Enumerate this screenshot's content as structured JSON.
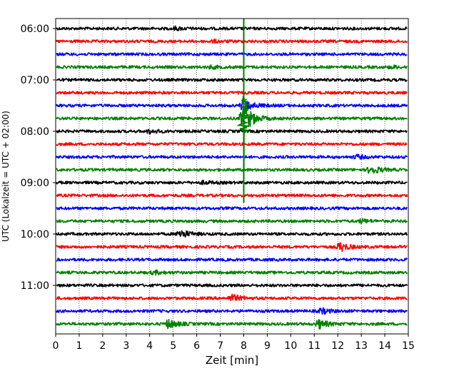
{
  "chart_data": {
    "type": "line",
    "title": "",
    "xlabel": "Zeit  [min]",
    "ylabel": "UTC (Lokalzeit = UTC + 02:00)",
    "xlim": [
      0,
      15
    ],
    "x_ticks": [
      0,
      1,
      2,
      3,
      4,
      5,
      6,
      7,
      8,
      9,
      10,
      11,
      12,
      13,
      14,
      15
    ],
    "y_tick_labels": [
      "06:00",
      "07:00",
      "08:00",
      "09:00",
      "10:00",
      "11:00"
    ],
    "trace_start_time": "06:00",
    "trace_interval_minutes": 15,
    "trace_count": 24,
    "grid": "vertical-dotted",
    "colors": [
      "#000000",
      "#ff0000",
      "#0000ff",
      "#008000"
    ],
    "events": [
      {
        "trace_start": "06:00",
        "minute": 5.1,
        "amplitude": 0.15
      },
      {
        "trace_start": "06:15",
        "minute": 6.7,
        "amplitude": 0.12
      },
      {
        "trace_start": "06:45",
        "minute": 6.6,
        "amplitude": 0.14
      },
      {
        "trace_start": "06:45",
        "minute": 14.3,
        "amplitude": 0.14
      },
      {
        "trace_start": "07:30",
        "minute": 8.0,
        "amplitude": 0.8
      },
      {
        "trace_start": "07:45",
        "minute": 8.0,
        "amplitude": 1.8
      },
      {
        "trace_start": "08:00",
        "minute": 4.0,
        "amplitude": 0.2
      },
      {
        "trace_start": "08:30",
        "minute": 12.8,
        "amplitude": 0.2
      },
      {
        "trace_start": "08:45",
        "minute": 13.4,
        "amplitude": 0.5
      },
      {
        "trace_start": "09:00",
        "minute": 6.3,
        "amplitude": 0.15
      },
      {
        "trace_start": "09:45",
        "minute": 13.0,
        "amplitude": 0.2
      },
      {
        "trace_start": "10:00",
        "minute": 5.3,
        "amplitude": 0.5
      },
      {
        "trace_start": "10:15",
        "minute": 12.1,
        "amplitude": 0.5
      },
      {
        "trace_start": "10:45",
        "minute": 4.2,
        "amplitude": 0.2
      },
      {
        "trace_start": "11:15",
        "minute": 7.5,
        "amplitude": 0.4
      },
      {
        "trace_start": "11:30",
        "minute": 11.3,
        "amplitude": 0.3
      },
      {
        "trace_start": "11:45",
        "minute": 4.8,
        "amplitude": 0.5
      },
      {
        "trace_start": "11:45",
        "minute": 11.2,
        "amplitude": 0.5
      }
    ],
    "large_event": {
      "minute": 8.0,
      "trace_start": "07:45",
      "color": "#008000"
    }
  }
}
